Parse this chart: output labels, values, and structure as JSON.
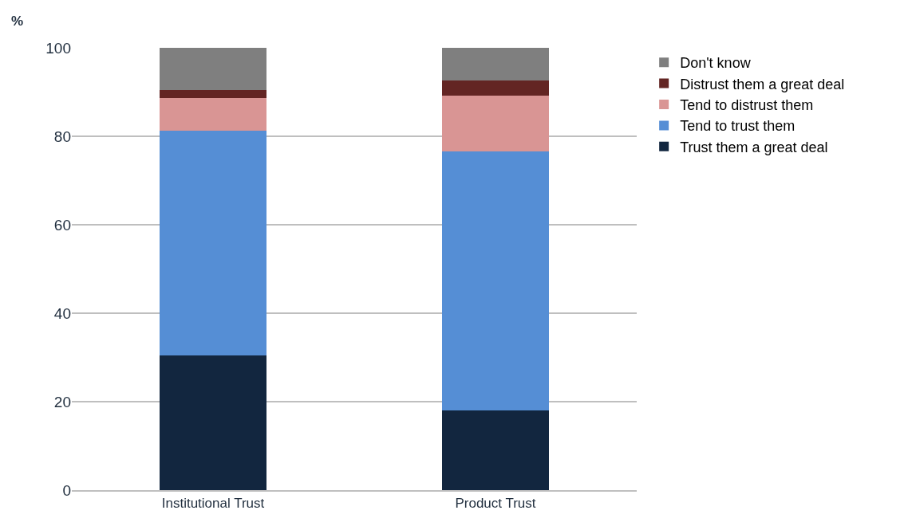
{
  "chart_data": {
    "type": "bar",
    "stacked": true,
    "ylabel": "%",
    "categories": [
      "Institutional Trust",
      "Product Trust"
    ],
    "series": [
      {
        "name": "Trust them a great deal",
        "color": "#12263f",
        "values": [
          30.4,
          18.0
        ]
      },
      {
        "name": "Tend to trust them",
        "color": "#558ed5",
        "values": [
          50.8,
          58.5
        ]
      },
      {
        "name": "Tend to distrust them",
        "color": "#d99594",
        "values": [
          7.4,
          12.7
        ]
      },
      {
        "name": "Distrust them a great deal",
        "color": "#632523",
        "values": [
          1.9,
          3.4
        ]
      },
      {
        "name": "Don't know",
        "color": "#7f7f7f",
        "values": [
          9.5,
          7.4
        ]
      }
    ],
    "ylim": [
      0,
      100
    ],
    "yticks": [
      0,
      20,
      40,
      60,
      80,
      100
    ],
    "grid": "y",
    "legend": "right"
  }
}
